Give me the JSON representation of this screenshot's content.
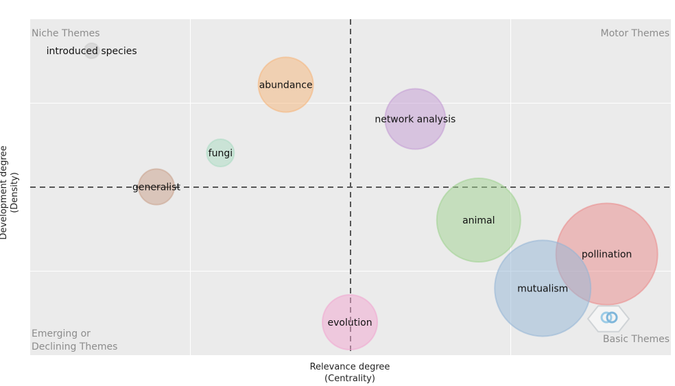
{
  "chart_data": {
    "type": "scatter",
    "xlabel_line1": "Relevance degree",
    "xlabel_line2": "(Centrality)",
    "ylabel_line1": "Development degree",
    "ylabel_line2": "(Density)",
    "xlim": [
      0,
      1
    ],
    "ylim": [
      0,
      1
    ],
    "x_reference": 0.5,
    "y_reference": 0.5,
    "grid": true,
    "quadrants": {
      "top_left": "Niche Themes",
      "top_right": "Motor Themes",
      "bottom_left_line1": "Emerging or",
      "bottom_left_line2": "Declining Themes",
      "bottom_right": "Basic Themes"
    },
    "points": [
      {
        "label": "introduced species",
        "x": 0.096,
        "y": 0.906,
        "r": 11,
        "color": "#c8c8c8"
      },
      {
        "label": "abundance",
        "x": 0.399,
        "y": 0.805,
        "r": 40,
        "color": "#f5b57a"
      },
      {
        "label": "network analysis",
        "x": 0.601,
        "y": 0.703,
        "r": 44,
        "color": "#c39bd3"
      },
      {
        "label": "fungi",
        "x": 0.297,
        "y": 0.602,
        "r": 20,
        "color": "#a9dbc2"
      },
      {
        "label": "generalist",
        "x": 0.197,
        "y": 0.501,
        "r": 26,
        "color": "#c9a08a"
      },
      {
        "label": "animal",
        "x": 0.7,
        "y": 0.402,
        "r": 61,
        "color": "#9fd28f"
      },
      {
        "label": "pollination",
        "x": 0.9,
        "y": 0.301,
        "r": 74,
        "color": "#ea8a8a"
      },
      {
        "label": "mutualism",
        "x": 0.8,
        "y": 0.199,
        "r": 70,
        "color": "#93b5d6"
      },
      {
        "label": "evolution",
        "x": 0.499,
        "y": 0.098,
        "r": 40,
        "color": "#f1a6cf"
      }
    ]
  },
  "colors": {
    "plot_bg": "#ebebeb",
    "grid": "#ffffff",
    "reference_line": "#555555",
    "quadrant_text": "#8c8c8c"
  }
}
